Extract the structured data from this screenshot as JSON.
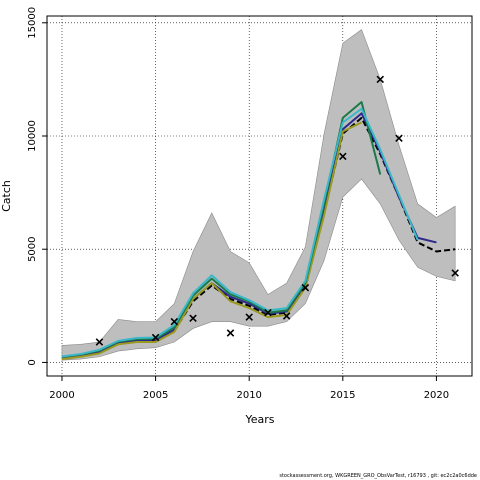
{
  "chart_data": {
    "type": "line",
    "xlabel": "Years",
    "ylabel": "Catch",
    "xlim": [
      1999.2,
      2021.9
    ],
    "ylim": [
      -600,
      15300
    ],
    "x_ticks": [
      2000,
      2005,
      2010,
      2015,
      2020
    ],
    "y_ticks": [
      0,
      5000,
      10000,
      15000
    ],
    "grid": true,
    "band": {
      "x": [
        2000,
        2001,
        2002,
        2003,
        2004,
        2005,
        2006,
        2007,
        2008,
        2009,
        2010,
        2011,
        2012,
        2013,
        2014,
        2015,
        2016,
        2017,
        2018,
        2019,
        2020,
        2021
      ],
      "lower": [
        100,
        150,
        250,
        500,
        600,
        650,
        900,
        1500,
        1800,
        1800,
        1600,
        1600,
        1800,
        2600,
        4500,
        7300,
        8100,
        7000,
        5400,
        4200,
        3800,
        3600
      ],
      "upper": [
        750,
        800,
        900,
        1900,
        1800,
        1800,
        2600,
        4900,
        6600,
        4900,
        4400,
        3000,
        3500,
        5100,
        10100,
        14100,
        14700,
        12500,
        9600,
        7000,
        6400,
        6900
      ]
    },
    "series": [
      {
        "color": "#000000",
        "dash": true,
        "x": [
          2000,
          2001,
          2002,
          2003,
          2004,
          2005,
          2006,
          2007,
          2008,
          2009,
          2010,
          2011,
          2012,
          2013,
          2014,
          2015,
          2016,
          2017,
          2018,
          2019,
          2020,
          2021
        ],
        "values": [
          200,
          300,
          450,
          850,
          950,
          950,
          1400,
          2700,
          3400,
          2800,
          2500,
          2100,
          2200,
          3300,
          6600,
          10100,
          10800,
          9200,
          7300,
          5300,
          4900,
          5000
        ]
      },
      {
        "color": "#2e2a8a",
        "x": [
          2000,
          2001,
          2002,
          2003,
          2004,
          2005,
          2006,
          2007,
          2008,
          2009,
          2010,
          2011,
          2012,
          2013,
          2014,
          2015,
          2016,
          2017,
          2018,
          2019,
          2020
        ],
        "values": [
          220,
          320,
          480,
          880,
          980,
          980,
          1450,
          2800,
          3500,
          2900,
          2600,
          2150,
          2250,
          3400,
          6800,
          10300,
          11000,
          9300,
          7300,
          5500,
          5300
        ]
      },
      {
        "color": "#9a9a20",
        "x": [
          2000,
          2001,
          2002,
          2003,
          2004,
          2005,
          2006,
          2007,
          2008,
          2009,
          2010,
          2011,
          2012,
          2013,
          2014,
          2015,
          2016
        ],
        "values": [
          150,
          250,
          400,
          800,
          900,
          900,
          1350,
          2800,
          3500,
          2700,
          2400,
          2000,
          2100,
          3300,
          6500,
          10200,
          10600
        ]
      },
      {
        "color": "#1a7a4a",
        "x": [
          2000,
          2001,
          2002,
          2003,
          2004,
          2005,
          2006,
          2007,
          2008,
          2009,
          2010,
          2011,
          2012,
          2013,
          2014,
          2015,
          2016,
          2017
        ],
        "values": [
          250,
          350,
          520,
          920,
          1030,
          1050,
          1550,
          2950,
          3700,
          3000,
          2700,
          2200,
          2300,
          3500,
          7000,
          10800,
          11500,
          8300
        ]
      },
      {
        "color": "#3ab8c8",
        "x": [
          2000,
          2001,
          2002,
          2003,
          2004,
          2005,
          2006,
          2007,
          2008,
          2009,
          2010,
          2011,
          2012,
          2013,
          2014,
          2015,
          2016,
          2017,
          2018,
          2019
        ],
        "values": [
          260,
          370,
          560,
          950,
          1080,
          1100,
          1650,
          3050,
          3850,
          3100,
          2750,
          2300,
          2400,
          3600,
          7200,
          10600,
          11200,
          9400,
          7400,
          5400
        ]
      }
    ],
    "observations": {
      "marker": "x",
      "x": [
        2002,
        2005,
        2006,
        2007,
        2009,
        2010,
        2011,
        2012,
        2013,
        2015,
        2017,
        2018,
        2021
      ],
      "y": [
        900,
        1100,
        1800,
        1950,
        1300,
        2000,
        2200,
        2050,
        3300,
        9100,
        12500,
        9900,
        3950
      ]
    }
  },
  "footer": "stockassessment.org,  WKGREEN_GRO_ObsVarTest,  r16793 ,  git:  ec2c2a0c6dde"
}
